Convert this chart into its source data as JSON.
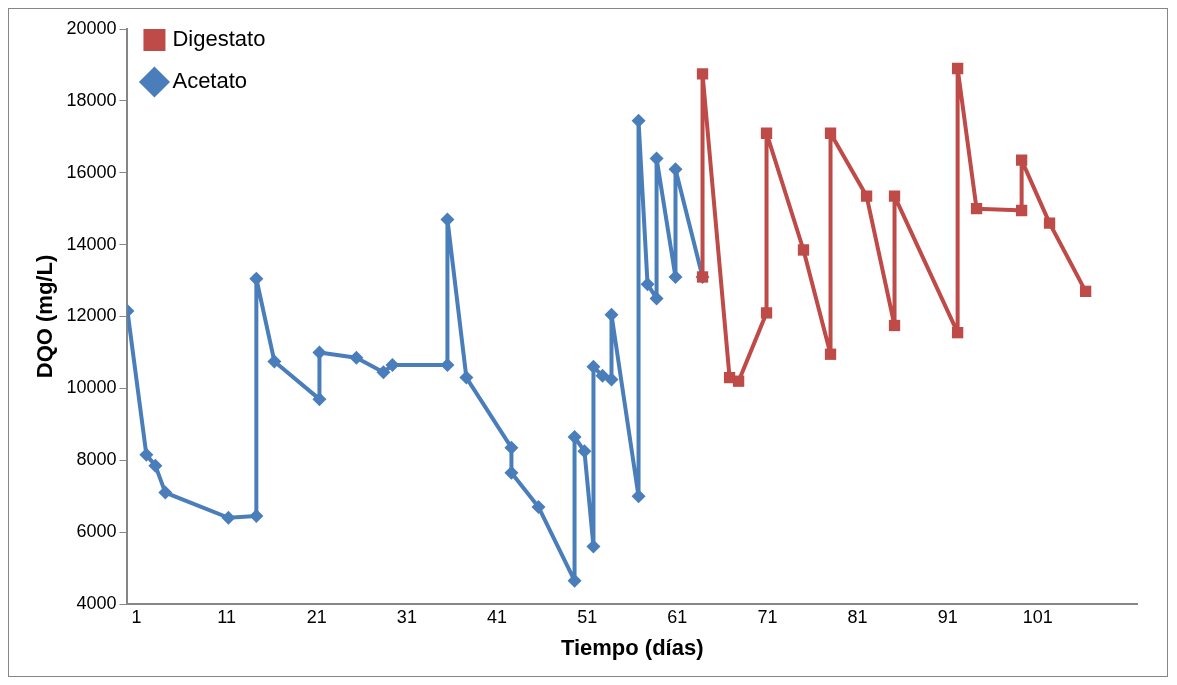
{
  "chart_data": {
    "type": "line",
    "xlabel": "Tiempo (días)",
    "ylabel": "DQO (mg/L)",
    "xlim": [
      0,
      112
    ],
    "xticks": [
      1,
      11,
      21,
      31,
      41,
      51,
      61,
      71,
      81,
      91,
      101
    ],
    "ylim": [
      4000,
      20000
    ],
    "yticks": [
      4000,
      6000,
      8000,
      10000,
      12000,
      14000,
      16000,
      18000,
      20000
    ],
    "grid": false,
    "legend": "top left",
    "series": [
      {
        "name": "Acetato",
        "color": "#4a7ebb",
        "marker": "diamond",
        "x": [
          0,
          2.1,
          3.1,
          4.2,
          11.2,
          14.3,
          14.3,
          16.3,
          21.3,
          21.3,
          25.4,
          28.4,
          29.4,
          35.5,
          35.5,
          37.6,
          42.6,
          42.6,
          45.6,
          49.6,
          49.6,
          50.7,
          51.7,
          51.7,
          52.7,
          53.7,
          53.7,
          56.7,
          56.7,
          57.7,
          58.7,
          58.7,
          60.8,
          60.8,
          63.8
        ],
        "values": [
          12150,
          8150,
          7850,
          7100,
          6400,
          6450,
          13050,
          10750,
          9700,
          11000,
          10850,
          10450,
          10650,
          10650,
          14700,
          10300,
          8350,
          7650,
          6700,
          4650,
          8650,
          8250,
          5600,
          10600,
          10350,
          10250,
          12050,
          7000,
          17450,
          12900,
          12500,
          16400,
          13100,
          16100,
          13100
        ]
      },
      {
        "name": "Digestato",
        "color": "#be4b48",
        "marker": "square",
        "x": [
          63.8,
          63.8,
          66.8,
          67.8,
          70.9,
          70.9,
          75.0,
          78.0,
          78.0,
          82.0,
          85.1,
          85.1,
          92.1,
          92.1,
          94.2,
          99.2,
          99.2,
          102.3,
          106.3
        ],
        "values": [
          13100,
          18750,
          10300,
          10200,
          12100,
          17100,
          13850,
          10950,
          17100,
          15350,
          11750,
          15350,
          11550,
          18900,
          15000,
          14950,
          16350,
          14600,
          12700
        ]
      }
    ]
  }
}
